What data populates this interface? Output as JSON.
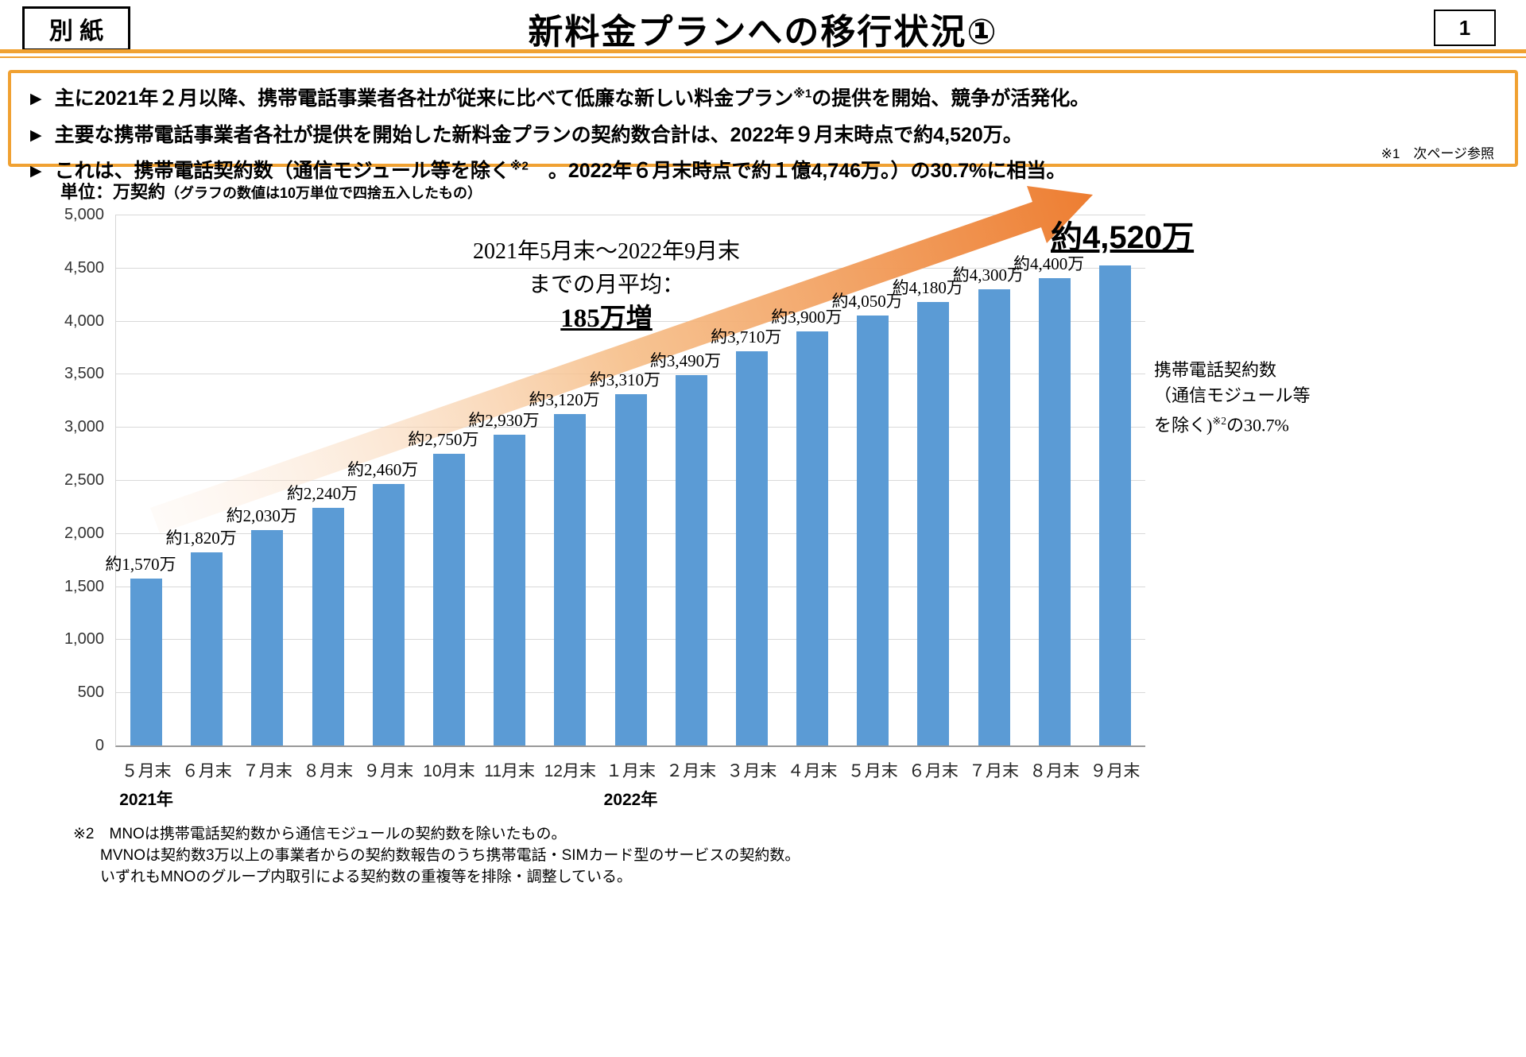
{
  "header": {
    "tag": "別 紙",
    "title": "新料金プランへの移行状況①",
    "page_number": "1"
  },
  "icons": {
    "bullet": "▶"
  },
  "colors": {
    "bar_blue": "#5B9BD5",
    "accent_orange": "#ED7D31",
    "box_border_orange": "#F0A132",
    "arrow_gradient_start": "#FCEBDD",
    "arrow_gradient_end": "#ED7D31"
  },
  "summary": {
    "bullets": [
      {
        "pre": "主に2021年２月以降、携帯電話事業者各社が従来に比べて低廉な新しい料金プラン",
        "sup": "※1",
        "post": "の提供を開始、競争が活発化。"
      },
      {
        "pre": "主要な携帯電話事業者各社が提供を開始した新料金プランの契約数合計は、2022年９月末時点で約4,520万。",
        "sup": "",
        "post": ""
      },
      {
        "pre": "これは、携帯電話契約数（通信モジュール等を除く",
        "sup": "※2",
        "post": "　。2022年６月末時点で約１億4,746万。）の30.7%に相当。"
      }
    ],
    "note_right": "※1　次ページ参照"
  },
  "chart_data": {
    "type": "bar",
    "unit_label": "単位：万契約",
    "unit_note": "（グラフの数値は10万単位で四捨五入したもの）",
    "categories": [
      "５月末",
      "６月末",
      "７月末",
      "８月末",
      "９月末",
      "10月末",
      "11月末",
      "12月末",
      "１月末",
      "２月末",
      "３月末",
      "４月末",
      "５月末",
      "６月末",
      "７月末",
      "８月末",
      "９月末"
    ],
    "values": [
      1570,
      1820,
      2030,
      2240,
      2460,
      2750,
      2930,
      3120,
      3310,
      3490,
      3710,
      3900,
      4050,
      4180,
      4300,
      4400,
      4520
    ],
    "labels": [
      "約1,570万",
      "約1,820万",
      "約2,030万",
      "約2,240万",
      "約2,460万",
      "約2,750万",
      "約2,930万",
      "約3,120万",
      "約3,310万",
      "約3,490万",
      "約3,710万",
      "約3,900万",
      "約4,050万",
      "約4,180万",
      "約4,300万",
      "約4,400万",
      ""
    ],
    "final_label": "約4,520万",
    "ylim": [
      0,
      5000
    ],
    "ytick_step": 500,
    "yticks": [
      "0",
      "500",
      "1,000",
      "1,500",
      "2,000",
      "2,500",
      "3,000",
      "3,500",
      "4,000",
      "4,500",
      "5,000"
    ],
    "year_labels": [
      {
        "text": "2021年",
        "index": 0
      },
      {
        "text": "2022年",
        "index": 8
      }
    ],
    "bar_color": "#5B9BD5",
    "annotation_center": {
      "line1": "2021年5月末～2022年9月末",
      "line2": "までの月平均：",
      "line3": "185万増"
    },
    "annotation_right": {
      "line1": "携帯電話契約数",
      "line2": "（通信モジュール等",
      "line3_pre": "を除く)",
      "line3_sup": "※2",
      "line3_post": "の30.7%"
    }
  },
  "footnotes": [
    "※2　MNOは携帯電話契約数から通信モジュールの契約数を除いたもの。",
    "MVNOは契約数3万以上の事業者からの契約数報告のうち携帯電話・SIMカード型のサービスの契約数。",
    "いずれもMNOのグループ内取引による契約数の重複等を排除・調整している。"
  ]
}
